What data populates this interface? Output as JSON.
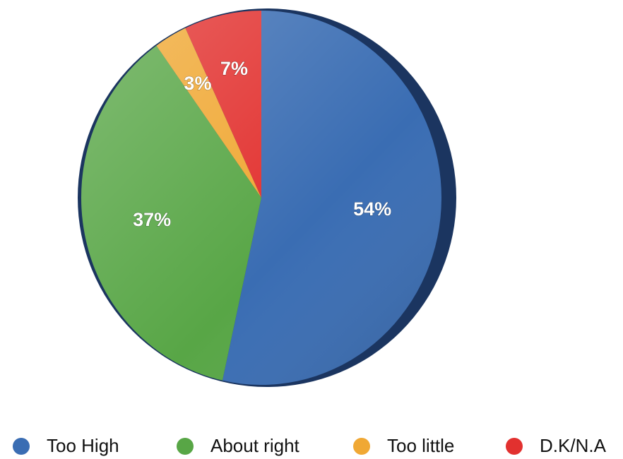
{
  "chart_data": {
    "type": "pie",
    "categories": [
      "Too High",
      "About right",
      "Too little",
      "D.K/N.A"
    ],
    "values": [
      54,
      37,
      3,
      7
    ],
    "value_labels": [
      "54%",
      "37%",
      "3%",
      "7%"
    ],
    "colors": [
      "#3a6db3",
      "#58a646",
      "#f0a834",
      "#e2312f"
    ],
    "legend": "bottom"
  }
}
